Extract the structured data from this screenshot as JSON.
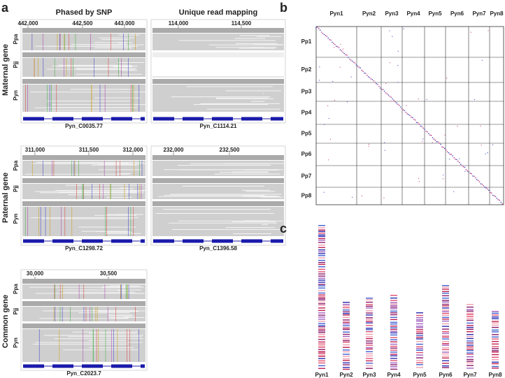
{
  "panel_a": {
    "label": "a",
    "column_titles": [
      "Phased by SNP",
      "Unique read mapping"
    ],
    "rows": [
      {
        "label": "Maternal gene",
        "tracks": [
          "Ppa",
          "Pjj",
          "Pyn"
        ],
        "loci": [
          {
            "ticks": [
              "442,000",
              "442,500",
              "443,000"
            ],
            "gene": "Pyn_C0035.77"
          },
          {
            "ticks": [
              "114,000",
              "114,500"
            ],
            "gene": "Pyn_C1114.21"
          }
        ]
      },
      {
        "label": "Paternal gene",
        "tracks": [
          "Ppa",
          "Pjj",
          "Pyn"
        ],
        "loci": [
          {
            "ticks": [
              "311,000",
              "311,500",
              "312,000"
            ],
            "gene": "Pyn_C1298.72"
          },
          {
            "ticks": [
              "232,000",
              "232,500"
            ],
            "gene": "Pyn_C1396.58"
          }
        ]
      },
      {
        "label": "Common gene",
        "tracks": [
          "Ppa",
          "Pjj",
          "Pyn"
        ],
        "loci": [
          {
            "ticks": [
              "30,000",
              "30,500"
            ],
            "gene": "Pyn_C2023.7"
          }
        ]
      }
    ]
  },
  "panel_b": {
    "label": "b",
    "columns": [
      "Pyn1",
      "Pyn2",
      "Pyn3",
      "Pyn4",
      "Pyn5",
      "Pyn6",
      "Pyn7",
      "Pyn8"
    ],
    "rows": [
      "Pp1",
      "Pp2",
      "Pp3",
      "Pp4",
      "Pp5",
      "Pp6",
      "Pp7",
      "Pp8"
    ]
  },
  "panel_c": {
    "label": "c",
    "chromosomes": [
      "Pyn1",
      "Pyn2",
      "Pyn3",
      "Pyn4",
      "Pyn5",
      "Pyn6",
      "Pyn7",
      "Pyn8"
    ]
  }
}
